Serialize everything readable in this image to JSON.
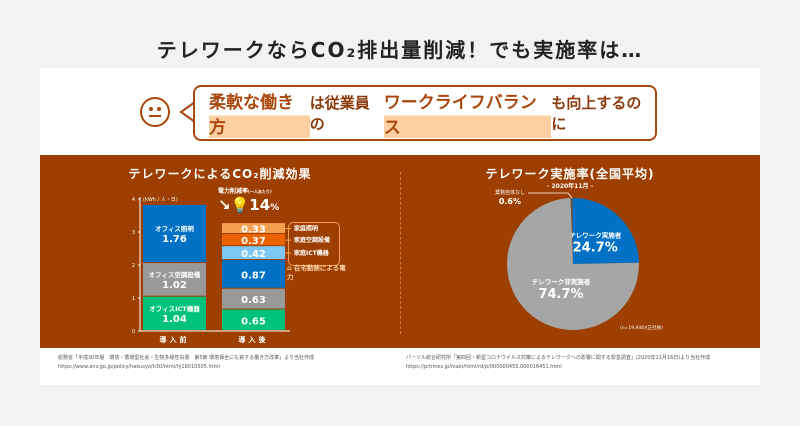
{
  "title": "テレワークならCO₂排出量削減！でも実施率は…",
  "bubble": {
    "part1": "柔軟な働き方",
    "part2": "は従業員の",
    "part3": "ワークライフバランス",
    "part4": "も向上するのに"
  },
  "chart_data": [
    {
      "type": "bar",
      "stacked": true,
      "title": "テレワークによるCO₂削減効果",
      "ylabel": "(kWh / 人・日)",
      "ylim": [
        0,
        4
      ],
      "yticks": [
        "0",
        "1",
        "2",
        "3",
        "4"
      ],
      "categories": [
        "導入前",
        "導入後"
      ],
      "series": [
        {
          "name": "オフィスICT機器",
          "color": "#00c27a",
          "values": [
            1.04,
            0.65
          ]
        },
        {
          "name": "オフィス空調設備",
          "color": "#999999",
          "values": [
            1.02,
            0.63
          ]
        },
        {
          "name": "オフィス照明",
          "color": "#0071c4",
          "values": [
            1.76,
            0.87
          ]
        },
        {
          "name": "家庭ICT機器",
          "color": "#7cc7f3",
          "values": [
            0,
            0.42
          ]
        },
        {
          "name": "家庭空調設備",
          "color": "#ea6300",
          "values": [
            0,
            0.37
          ]
        },
        {
          "name": "家庭照明",
          "color": "#f5a050",
          "values": [
            0,
            0.33
          ]
        }
      ],
      "reduction": {
        "label": "電力削減率",
        "unit_note": "(一人あたり)",
        "value": "14",
        "pct": "%"
      },
      "home_note": "在宅勤務による電力"
    },
    {
      "type": "pie",
      "title": "テレワーク実施率(全国平均)",
      "subtitle": "- 2020年11月 -",
      "note": "(n=19,946)(正社員)",
      "slices": [
        {
          "label": "業務自体なし",
          "value": 0.6,
          "color": "#555555"
        },
        {
          "label": "テレワーク実施者",
          "value": 24.7,
          "color": "#0071c4"
        },
        {
          "label": "テレワーク非実施者",
          "value": 74.7,
          "color": "#a6a6a6"
        }
      ]
    }
  ],
  "sources": {
    "left1": "総務省「平成30年版　環境・循環型社会・生物多様性白書　第5節 環境保全にも資する働き方改革」より当社作成",
    "left2": "https://www.env.go.jp/policy/hakusyo/h30/html/hj18010505.html",
    "right1": "パーソル総合研究所「第四回・新型コロナウイルス対策によるテレワークへの影響に関する緊急調査」(2020年11月16日)より当社作成",
    "right2": "https://prtimes.jp/main/html/rd/p/000000455.000016451.html"
  }
}
